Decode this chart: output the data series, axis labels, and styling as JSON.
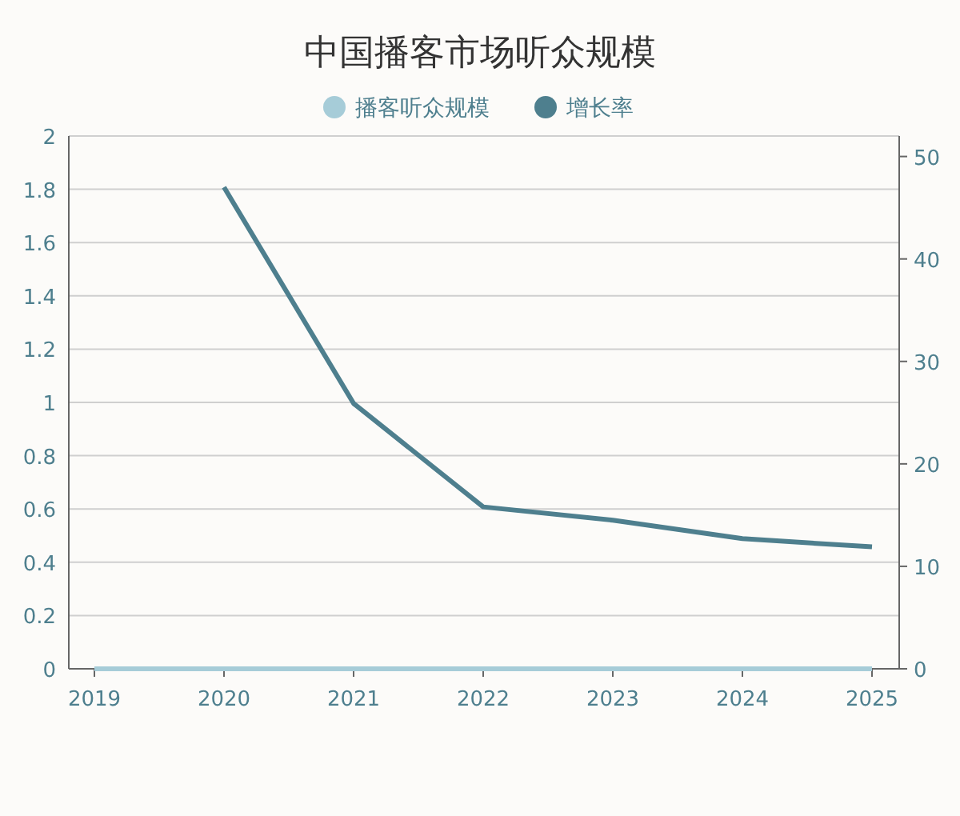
{
  "chart_data": {
    "type": "line",
    "title": "中国播客市场听众规模",
    "categories": [
      "2019",
      "2020",
      "2021",
      "2022",
      "2023",
      "2024",
      "2025"
    ],
    "series": [
      {
        "name": "播客听众规模",
        "color": "#a6ccd8",
        "values": [
          0,
          0,
          0,
          0,
          0,
          0,
          0
        ]
      },
      {
        "name": "增长率",
        "color": "#4e7f8e",
        "axis": "y2",
        "values": [
          null,
          47.0,
          25.9,
          15.8,
          14.5,
          12.7,
          11.9
        ]
      }
    ],
    "ylim": [
      0,
      2
    ],
    "yticks": [
      0,
      0.2,
      0.4,
      0.6,
      0.8,
      1,
      1.2,
      1.4,
      1.6,
      1.8,
      2
    ],
    "y2lim": [
      0,
      52
    ],
    "y2ticks": [
      0,
      10,
      20,
      30,
      40,
      50
    ],
    "grid": "y",
    "legend": "top",
    "marker": "none"
  }
}
